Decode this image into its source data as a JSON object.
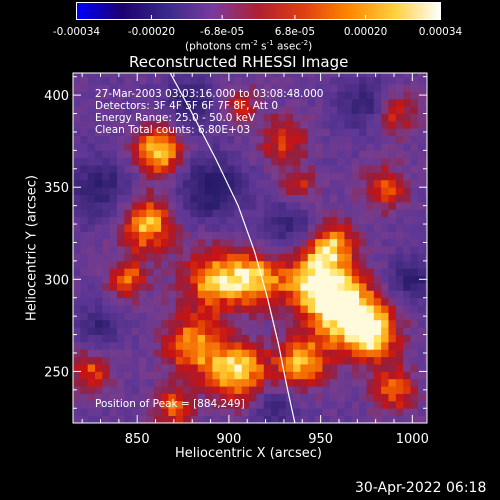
{
  "colorbar": {
    "tick_labels": [
      "-0.00034",
      "-0.00020",
      "-6.8e-05",
      "6.8e-05",
      "0.00020",
      "0.00034"
    ],
    "tick_values": [
      -0.00034,
      -0.0002,
      -6.8e-05,
      6.8e-05,
      0.0002,
      0.00034
    ],
    "range": [
      -0.00034,
      0.00034
    ],
    "unit_prefix": "(photons cm",
    "unit_sup1": "-2",
    "unit_mid1": " s",
    "unit_sup2": "-1",
    "unit_mid2": " asec",
    "unit_sup3": "-2",
    "unit_suffix": ")",
    "colors": [
      "#0000ff",
      "#1c0070",
      "#3a2a8a",
      "#7a3aa0",
      "#b02030",
      "#e04010",
      "#ff8800",
      "#ffd040",
      "#ffffff"
    ]
  },
  "chart_data": {
    "type": "heatmap",
    "title": "Reconstructed RHESSI Image",
    "xlabel": "Heliocentric X (arcsec)",
    "ylabel": "Heliocentric Y (arcsec)",
    "xlim": [
      815,
      1008
    ],
    "ylim": [
      222,
      412
    ],
    "x_ticks": [
      850,
      900,
      950,
      1000
    ],
    "y_ticks": [
      250,
      300,
      350,
      400
    ],
    "annotations": [
      "27-Mar-2003 03:03:16.000 to 03:08:48.000",
      "Detectors: 3F 4F 5F 6F 7F 8F, Att 0",
      "Energy Range: 25.0 - 50.0 keV",
      "Clean     Total counts: 6.80E+03"
    ],
    "peak_label": "Position of Peak = [884,249]",
    "peak": [
      884,
      249
    ],
    "limb_curve": [
      [
        868,
        412
      ],
      [
        880,
        390
      ],
      [
        893,
        365
      ],
      [
        905,
        340
      ],
      [
        914,
        315
      ],
      [
        921,
        290
      ],
      [
        927,
        265
      ],
      [
        932,
        240
      ],
      [
        936,
        222
      ]
    ],
    "hot_sources": [
      {
        "x": 862,
        "y": 370,
        "strength": 0.85,
        "size": 10
      },
      {
        "x": 855,
        "y": 330,
        "strength": 0.8,
        "size": 11
      },
      {
        "x": 845,
        "y": 300,
        "strength": 0.6,
        "size": 8
      },
      {
        "x": 905,
        "y": 395,
        "strength": 0.45,
        "size": 8
      },
      {
        "x": 892,
        "y": 300,
        "strength": 0.8,
        "size": 12
      },
      {
        "x": 915,
        "y": 300,
        "strength": 0.75,
        "size": 10
      },
      {
        "x": 880,
        "y": 265,
        "strength": 0.7,
        "size": 12
      },
      {
        "x": 905,
        "y": 250,
        "strength": 0.85,
        "size": 12
      },
      {
        "x": 940,
        "y": 255,
        "strength": 0.75,
        "size": 10
      },
      {
        "x": 945,
        "y": 300,
        "strength": 0.7,
        "size": 12
      },
      {
        "x": 962,
        "y": 285,
        "strength": 0.95,
        "size": 14
      },
      {
        "x": 978,
        "y": 270,
        "strength": 0.8,
        "size": 11
      },
      {
        "x": 955,
        "y": 320,
        "strength": 0.7,
        "size": 10
      },
      {
        "x": 985,
        "y": 350,
        "strength": 0.55,
        "size": 9
      },
      {
        "x": 930,
        "y": 375,
        "strength": 0.5,
        "size": 10
      },
      {
        "x": 990,
        "y": 390,
        "strength": 0.55,
        "size": 9
      },
      {
        "x": 938,
        "y": 350,
        "strength": 0.5,
        "size": 7
      },
      {
        "x": 870,
        "y": 230,
        "strength": 0.6,
        "size": 8
      },
      {
        "x": 990,
        "y": 240,
        "strength": 0.6,
        "size": 9
      },
      {
        "x": 825,
        "y": 250,
        "strength": 0.55,
        "size": 8
      }
    ],
    "cold_sources": [
      {
        "x": 890,
        "y": 350,
        "strength": 0.6,
        "size": 12
      },
      {
        "x": 880,
        "y": 395,
        "strength": 0.5,
        "size": 10
      },
      {
        "x": 935,
        "y": 330,
        "strength": 0.45,
        "size": 10
      },
      {
        "x": 975,
        "y": 395,
        "strength": 0.5,
        "size": 10
      },
      {
        "x": 830,
        "y": 350,
        "strength": 0.5,
        "size": 12
      },
      {
        "x": 1000,
        "y": 300,
        "strength": 0.5,
        "size": 9
      },
      {
        "x": 830,
        "y": 275,
        "strength": 0.4,
        "size": 8
      },
      {
        "x": 925,
        "y": 230,
        "strength": 0.4,
        "size": 8
      }
    ]
  },
  "timestamp": "30-Apr-2022 06:18"
}
